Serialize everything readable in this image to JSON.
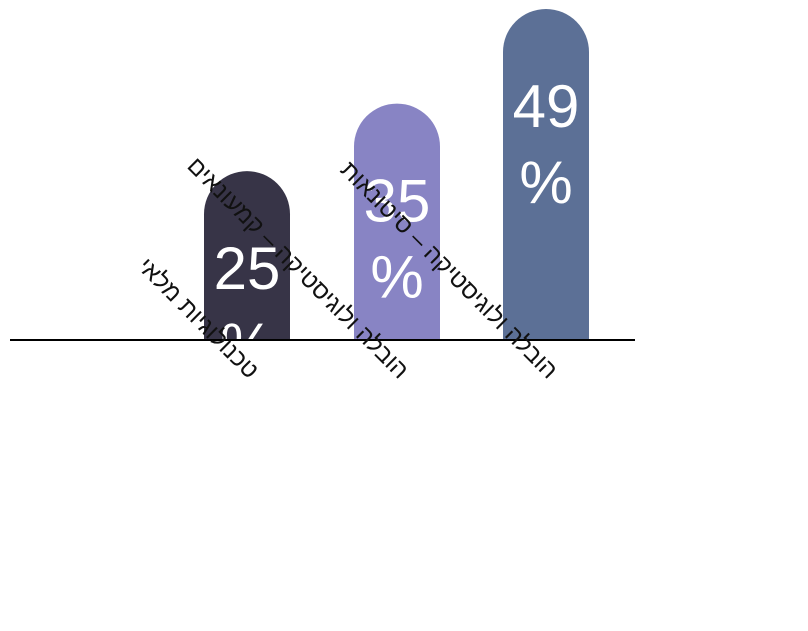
{
  "chart_data": {
    "type": "bar",
    "title": "",
    "xlabel": "",
    "ylabel": "",
    "ylim": [
      0,
      49
    ],
    "categories": [
      "טכנולוגיות מלאי",
      "הובלה ולוגיסטיקה – קמעונאים",
      "הובלה ולוגיסטיקה – סיטונאות"
    ],
    "values": [
      25,
      35,
      49
    ],
    "value_labels": [
      [
        "25",
        "%"
      ],
      [
        "35",
        "%"
      ],
      [
        "49",
        "%"
      ]
    ],
    "colors": [
      "#373447",
      "#8884c4",
      "#5c7096"
    ],
    "axis_color": "#000000",
    "grid": false,
    "legend": "none"
  }
}
